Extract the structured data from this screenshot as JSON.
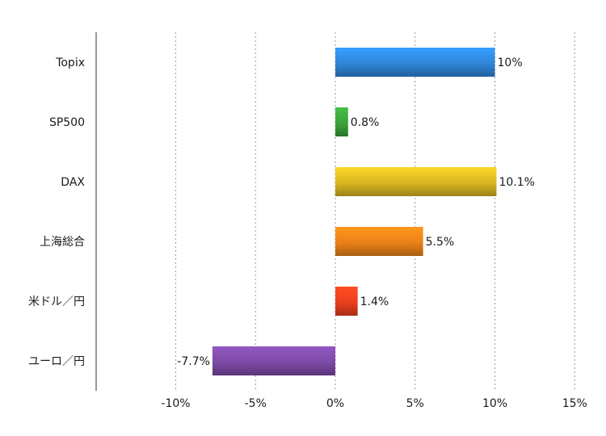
{
  "chart_data": {
    "type": "bar",
    "orientation": "horizontal",
    "title": "",
    "xlabel": "",
    "ylabel": "",
    "categories": [
      "Topix",
      "SP500",
      "DAX",
      "上海総合",
      "米ドル／円",
      "ユーロ／円"
    ],
    "values": [
      10,
      0.8,
      10.1,
      5.5,
      1.4,
      -7.7
    ],
    "data_labels": [
      "10%",
      "0.8%",
      "10.1%",
      "5.5%",
      "1.4%",
      "-7.7%"
    ],
    "bar_colors": [
      "#2f86d8",
      "#3aa33a",
      "#d7b621",
      "#ea8118",
      "#e8401d",
      "#7d4aa6"
    ],
    "xlim": [
      -15,
      15
    ],
    "xticks": [
      -10,
      -5,
      0,
      5,
      10,
      15
    ],
    "xtick_labels": [
      "-10%",
      "-5%",
      "0%",
      "5%",
      "10%",
      "15%"
    ],
    "grid": "vertical dotted"
  }
}
